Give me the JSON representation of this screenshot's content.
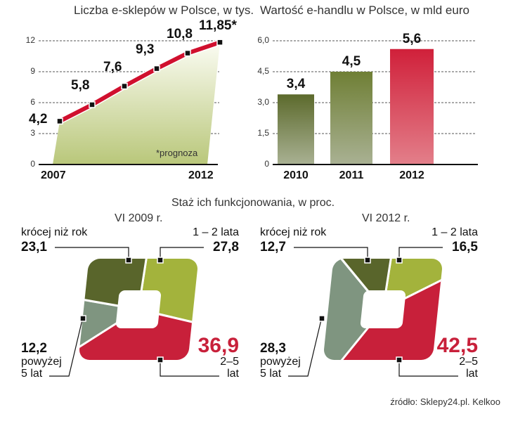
{
  "chart_data": [
    {
      "type": "line",
      "title": "Liczba e-sklepów w Polsce, w tys.",
      "x": [
        2007,
        2008,
        2009,
        2010,
        2011,
        2012
      ],
      "xtick_labels": [
        "2007",
        "2012"
      ],
      "values": [
        4.2,
        5.8,
        7.6,
        9.3,
        10.8,
        11.85
      ],
      "data_labels": [
        "4,2",
        "5,8",
        "7,6",
        "9,3",
        "10,8",
        "11,85*"
      ],
      "yticks": [
        "0",
        "3",
        "6",
        "9",
        "12"
      ],
      "ylim": [
        0,
        12
      ],
      "note": "*prognoza",
      "line_color": "#d0102e",
      "fill_color": "#c9d48f"
    },
    {
      "type": "bar",
      "title": "Wartość e-handlu w Polsce, w mld euro",
      "categories": [
        "2010",
        "2011",
        "2012"
      ],
      "values": [
        3.4,
        4.5,
        5.6
      ],
      "data_labels": [
        "3,4",
        "4,5",
        "5,6"
      ],
      "yticks": [
        "0",
        "1,5",
        "3,0",
        "4,5",
        "6,0"
      ],
      "ylim": [
        0,
        6
      ],
      "colors": [
        "#5c6a2c",
        "#6f7f35",
        "#d0203a"
      ]
    },
    {
      "type": "pie",
      "title": "VI 2009 r.",
      "slices": [
        {
          "label": "1 – 2 lata",
          "value": 27.8,
          "text": "27,8",
          "color": "#a3b33c"
        },
        {
          "label": "2–5 lat",
          "value": 36.9,
          "text": "36,9",
          "color": "#c8203a"
        },
        {
          "label": "powyżej 5 lat",
          "value": 12.2,
          "text": "12,2",
          "color": "#7f9580"
        },
        {
          "label": "krócej niż rok",
          "value": 23.1,
          "text": "23,1",
          "color": "#59652b"
        }
      ]
    },
    {
      "type": "pie",
      "title": "VI 2012 r.",
      "slices": [
        {
          "label": "1 – 2 lata",
          "value": 16.5,
          "text": "16,5",
          "color": "#a3b33c"
        },
        {
          "label": "2–5 lat",
          "value": 42.5,
          "text": "42,5",
          "color": "#c8203a"
        },
        {
          "label": "powyżej 5 lat",
          "value": 28.3,
          "text": "28,3",
          "color": "#7f9580"
        },
        {
          "label": "krócej niż rok",
          "value": 12.7,
          "text": "12,7",
          "color": "#59652b"
        }
      ]
    }
  ],
  "section_title": "Staż ich funkcjonowania, w proc.",
  "labels": {
    "lt1_line1": "krócej niż rok",
    "y12": "1 – 2 lata",
    "over5a": "powyżej",
    "over5b": "5 lat",
    "y25a": "2–5",
    "y25b": "lat"
  },
  "source": "źródło: Sklepy24.pl. Kelkoo"
}
